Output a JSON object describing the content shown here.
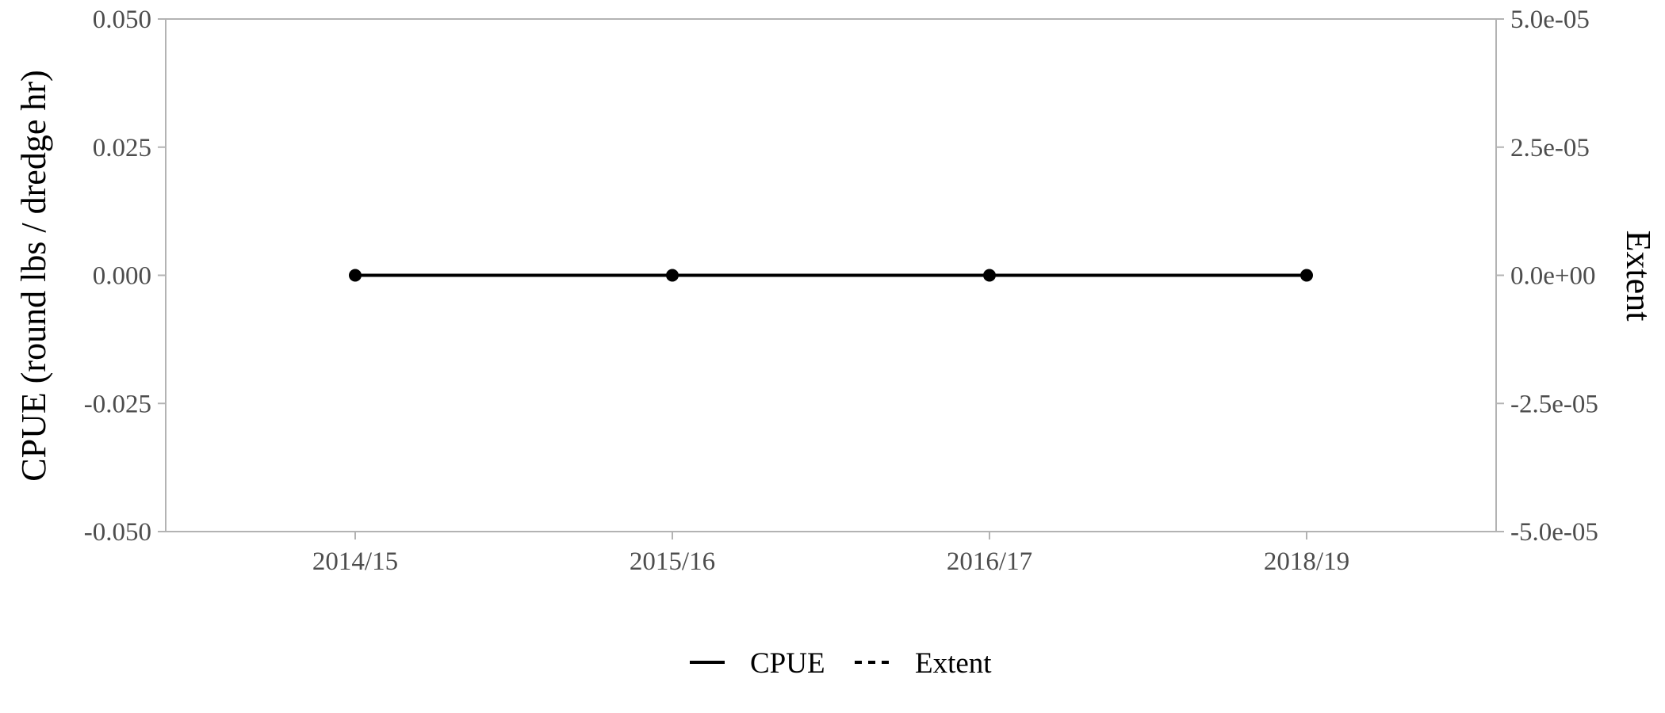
{
  "chart_data": {
    "type": "line",
    "categories": [
      "2014/15",
      "2015/16",
      "2016/17",
      "2018/19"
    ],
    "series": [
      {
        "name": "CPUE",
        "axis": "left",
        "line_style": "solid",
        "markers": true,
        "values": [
          0,
          0,
          0,
          0
        ]
      },
      {
        "name": "Extent",
        "axis": "right",
        "line_style": "dashed",
        "markers": false,
        "values": [
          0,
          0,
          0,
          0
        ]
      }
    ],
    "ylabel": "CPUE (round lbs / dredge hr)",
    "y2label": "Extent",
    "ylim": [
      -0.05,
      0.05
    ],
    "y2lim": [
      -5e-05,
      5e-05
    ],
    "yticks": [
      {
        "value": -0.05,
        "label": "-0.050"
      },
      {
        "value": -0.025,
        "label": "-0.025"
      },
      {
        "value": 0,
        "label": "0.000"
      },
      {
        "value": 0.025,
        "label": "0.025"
      },
      {
        "value": 0.05,
        "label": "0.050"
      }
    ],
    "y2ticks": [
      {
        "value": -5e-05,
        "label": "-5.0e-05"
      },
      {
        "value": -2.5e-05,
        "label": "-2.5e-05"
      },
      {
        "value": 0,
        "label": "0.0e+00"
      },
      {
        "value": 2.5e-05,
        "label": "2.5e-05"
      },
      {
        "value": 5e-05,
        "label": "5.0e-05"
      }
    ],
    "grid": false,
    "legend_position": "bottom",
    "colors": {
      "line": "#000000",
      "axis": "#b3b3b3",
      "tick_text": "#4d4d4d"
    }
  }
}
